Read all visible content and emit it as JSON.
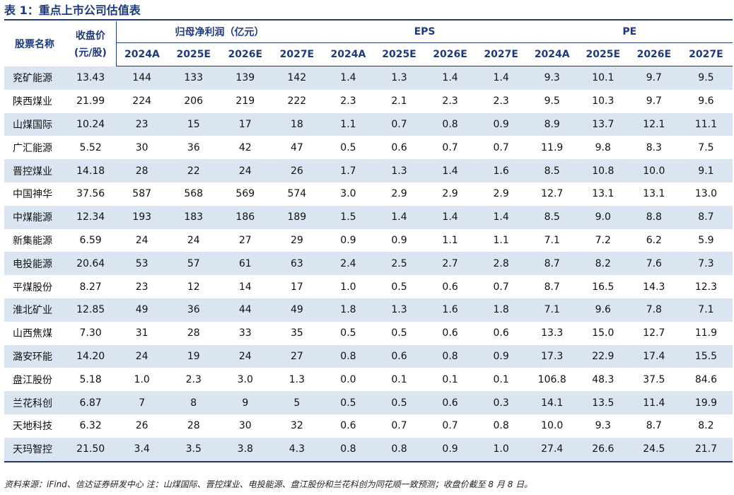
{
  "title": "表 1：重点上市公司估值表",
  "header": {
    "stock": "股票名称",
    "close_line1": "收盘价",
    "close_line2": "(元/股)",
    "groups": [
      "归母净利润（亿元）",
      "EPS",
      "PE"
    ],
    "years": [
      "2024A",
      "2025E",
      "2026E",
      "2027E",
      "2024A",
      "2025E",
      "2026E",
      "2027E",
      "2024A",
      "2025E",
      "2026E",
      "2027E"
    ]
  },
  "rows": [
    [
      "兖矿能源",
      "13.43",
      "144",
      "133",
      "139",
      "142",
      "1.4",
      "1.3",
      "1.4",
      "1.4",
      "9.3",
      "10.1",
      "9.7",
      "9.5"
    ],
    [
      "陕西煤业",
      "21.99",
      "224",
      "206",
      "219",
      "222",
      "2.3",
      "2.1",
      "2.3",
      "2.3",
      "9.5",
      "10.3",
      "9.7",
      "9.6"
    ],
    [
      "山煤国际",
      "10.24",
      "23",
      "15",
      "17",
      "18",
      "1.1",
      "0.7",
      "0.8",
      "0.9",
      "8.9",
      "13.7",
      "12.1",
      "11.1"
    ],
    [
      "广汇能源",
      "5.52",
      "30",
      "36",
      "42",
      "47",
      "0.5",
      "0.6",
      "0.7",
      "0.7",
      "11.9",
      "9.8",
      "8.3",
      "7.5"
    ],
    [
      "晋控煤业",
      "14.18",
      "28",
      "22",
      "24",
      "26",
      "1.7",
      "1.3",
      "1.4",
      "1.6",
      "8.5",
      "10.8",
      "10.0",
      "9.1"
    ],
    [
      "中国神华",
      "37.56",
      "587",
      "568",
      "569",
      "574",
      "3.0",
      "2.9",
      "2.9",
      "2.9",
      "12.7",
      "13.1",
      "13.1",
      "13.0"
    ],
    [
      "中煤能源",
      "12.34",
      "193",
      "183",
      "186",
      "189",
      "1.5",
      "1.4",
      "1.4",
      "1.4",
      "8.5",
      "9.0",
      "8.8",
      "8.7"
    ],
    [
      "新集能源",
      "6.59",
      "24",
      "24",
      "27",
      "29",
      "0.9",
      "0.9",
      "1.1",
      "1.1",
      "7.1",
      "7.2",
      "6.2",
      "5.9"
    ],
    [
      "电投能源",
      "20.64",
      "53",
      "57",
      "61",
      "63",
      "2.4",
      "2.5",
      "2.7",
      "2.8",
      "8.7",
      "8.2",
      "7.6",
      "7.3"
    ],
    [
      "平煤股份",
      "8.27",
      "23",
      "12",
      "14",
      "17",
      "1.0",
      "0.5",
      "0.6",
      "0.7",
      "8.7",
      "16.5",
      "14.3",
      "12.3"
    ],
    [
      "淮北矿业",
      "12.85",
      "49",
      "36",
      "44",
      "49",
      "1.8",
      "1.3",
      "1.6",
      "1.8",
      "7.1",
      "9.6",
      "7.8",
      "7.1"
    ],
    [
      "山西焦煤",
      "7.30",
      "31",
      "28",
      "33",
      "35",
      "0.5",
      "0.5",
      "0.6",
      "0.6",
      "13.3",
      "15.0",
      "12.7",
      "11.9"
    ],
    [
      "潞安环能",
      "14.20",
      "24",
      "19",
      "24",
      "27",
      "0.8",
      "0.6",
      "0.8",
      "0.9",
      "17.3",
      "22.9",
      "17.4",
      "15.5"
    ],
    [
      "盘江股份",
      "5.18",
      "1.0",
      "2.3",
      "3.0",
      "1.3",
      "0.0",
      "0.1",
      "0.1",
      "0.1",
      "106.8",
      "48.3",
      "37.5",
      "84.6"
    ],
    [
      "兰花科创",
      "6.87",
      "7",
      "8",
      "9",
      "5",
      "0.5",
      "0.5",
      "0.6",
      "0.3",
      "14.1",
      "13.5",
      "11.4",
      "19.9"
    ],
    [
      "天地科技",
      "6.32",
      "26",
      "28",
      "30",
      "32",
      "0.6",
      "0.7",
      "0.7",
      "0.8",
      "10.0",
      "9.3",
      "8.7",
      "8.2"
    ],
    [
      "天玛智控",
      "21.50",
      "3.4",
      "3.5",
      "3.8",
      "4.3",
      "0.8",
      "0.8",
      "0.9",
      "1.0",
      "27.4",
      "26.6",
      "24.5",
      "21.7"
    ]
  ],
  "source": "资料来源：iFind、信达证券研发中心   注：山煤国际、晋控煤业、电投能源、盘江股份和兰花科创为同花顺一致预测；收盘价截至 8 月 8 日。",
  "colors": {
    "header_text": "#1f3a78",
    "stripe": "#dbe5f1",
    "rule": "#1f3a78"
  }
}
